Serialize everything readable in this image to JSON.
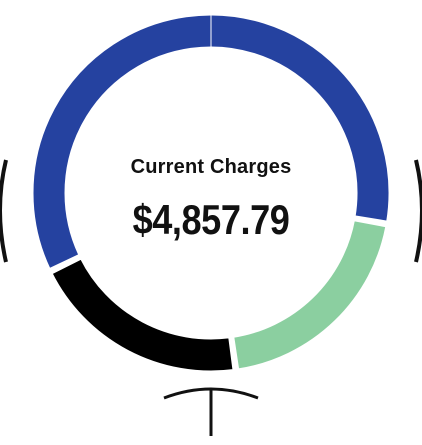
{
  "widget": {
    "label": "Current Charges",
    "amount": "$4,857.79"
  },
  "ring": {
    "segments": [
      {
        "name": "blue",
        "color": "#2542A0",
        "fraction": 0.6
      },
      {
        "name": "green",
        "color": "#8BCFA0",
        "fraction": 0.2
      },
      {
        "name": "black",
        "color": "#000000",
        "fraction": 0.2
      }
    ],
    "gap_color": "#ffffff"
  },
  "nav": {
    "left_icon": "chevron-left-icon",
    "right_icon": "chevron-right-icon",
    "bottom_icon": "pointer-tee-icon"
  }
}
